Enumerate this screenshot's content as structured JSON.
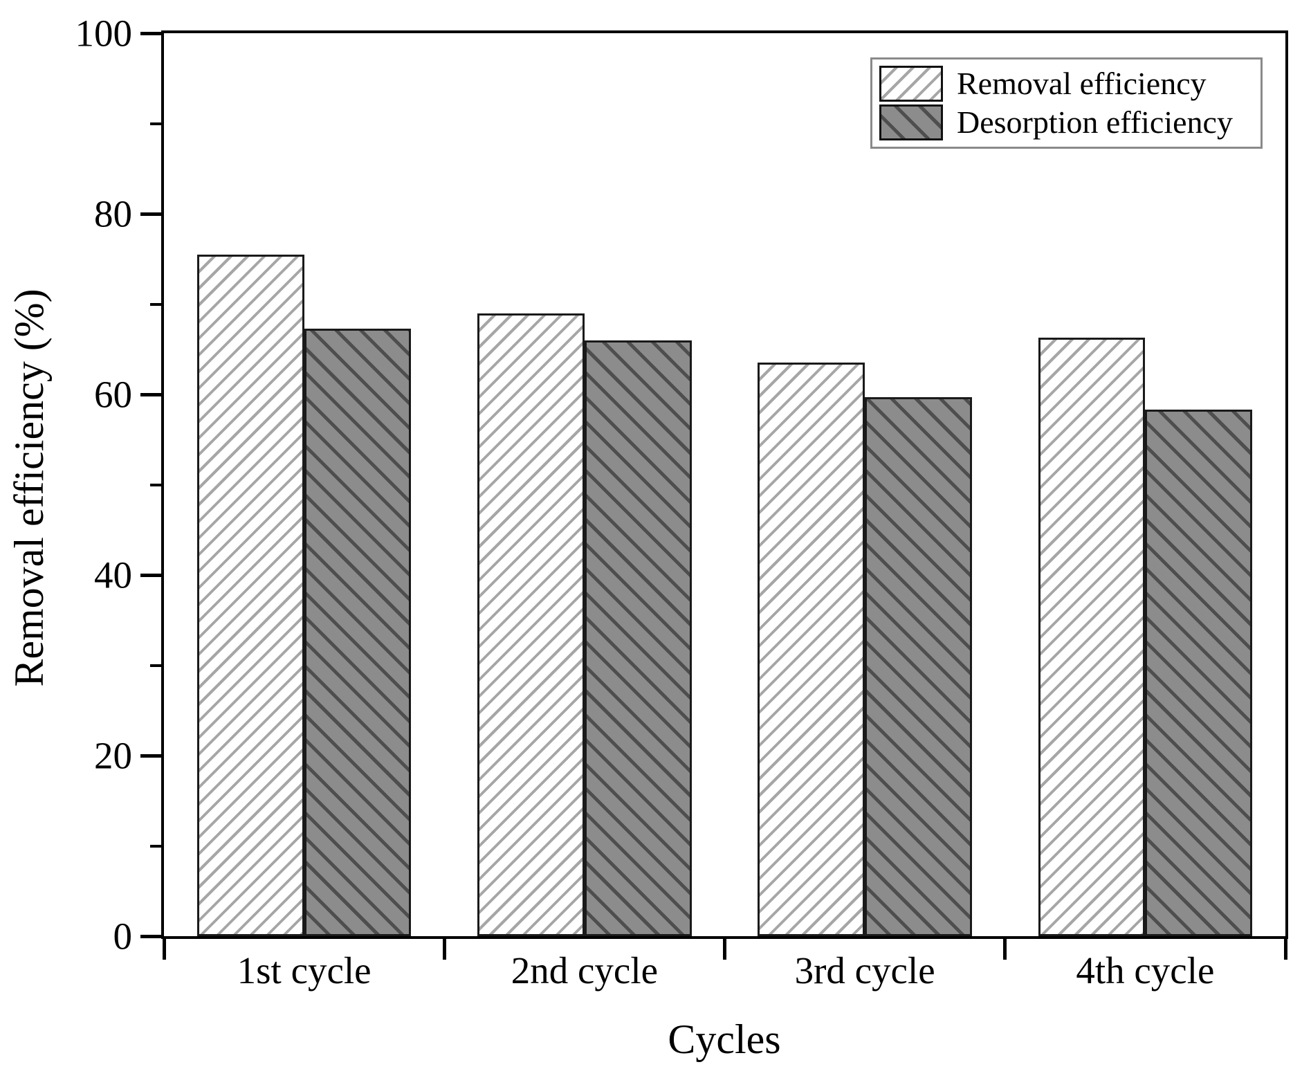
{
  "chart_data": {
    "type": "bar",
    "title": "",
    "xlabel": "Cycles",
    "ylabel": "Removal efficiency (%)",
    "categories": [
      "1st cycle",
      "2nd cycle",
      "3rd cycle",
      "4th cycle"
    ],
    "series": [
      {
        "name": "Removal efficiency",
        "values": [
          75.5,
          69.0,
          63.5,
          66.3
        ],
        "fill": "#ffffff",
        "hatch": "///",
        "hatch_color": "#a6a6a6",
        "border_color": "#1a1a1a"
      },
      {
        "name": "Desorption efficiency",
        "values": [
          67.3,
          66.0,
          59.7,
          58.3
        ],
        "fill": "#8c8c8c",
        "hatch": "\\\\\\",
        "hatch_color": "#4e4e4e",
        "border_color": "#1a1a1a"
      }
    ],
    "ylim": [
      0,
      100
    ],
    "yticks": [
      0,
      20,
      40,
      60,
      80,
      100
    ],
    "yticks_minor": [
      10,
      30,
      50,
      70,
      90
    ],
    "grid": false,
    "legend_position": "top-right",
    "axis_color": "#000000",
    "background": "#ffffff"
  }
}
